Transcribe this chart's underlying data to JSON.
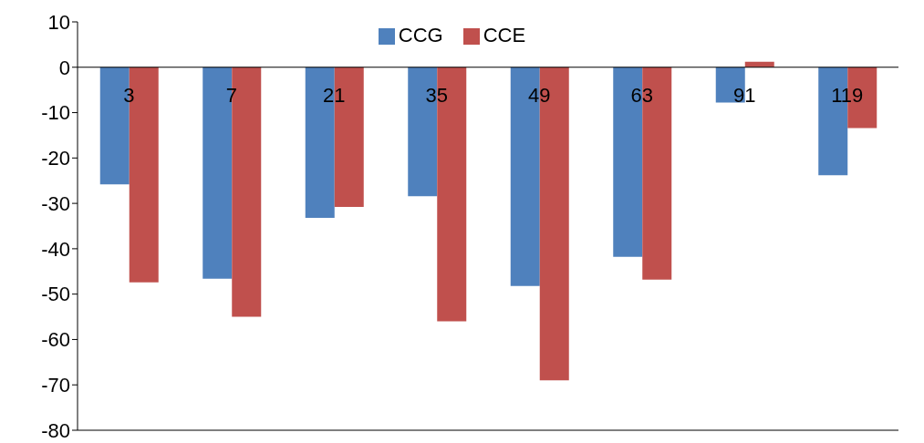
{
  "chart_data": {
    "type": "bar",
    "categories": [
      "3",
      "7",
      "21",
      "35",
      "49",
      "63",
      "91",
      "119"
    ],
    "series": [
      {
        "name": "CCG",
        "color": "#4f81bd",
        "values": [
          -25.8,
          -46.6,
          -33.2,
          -28.4,
          -48.2,
          -41.8,
          -7.8,
          -23.8
        ]
      },
      {
        "name": "CCE",
        "color": "#c0504d",
        "values": [
          -47.4,
          -55,
          -30.8,
          -56,
          -69,
          -46.8,
          1.2,
          -13.4
        ]
      }
    ],
    "ylim": [
      -80,
      10
    ],
    "yticks": [
      -80,
      -70,
      -60,
      -50,
      -40,
      -30,
      -20,
      -10,
      0,
      10
    ],
    "grid": false,
    "legend": "top"
  }
}
